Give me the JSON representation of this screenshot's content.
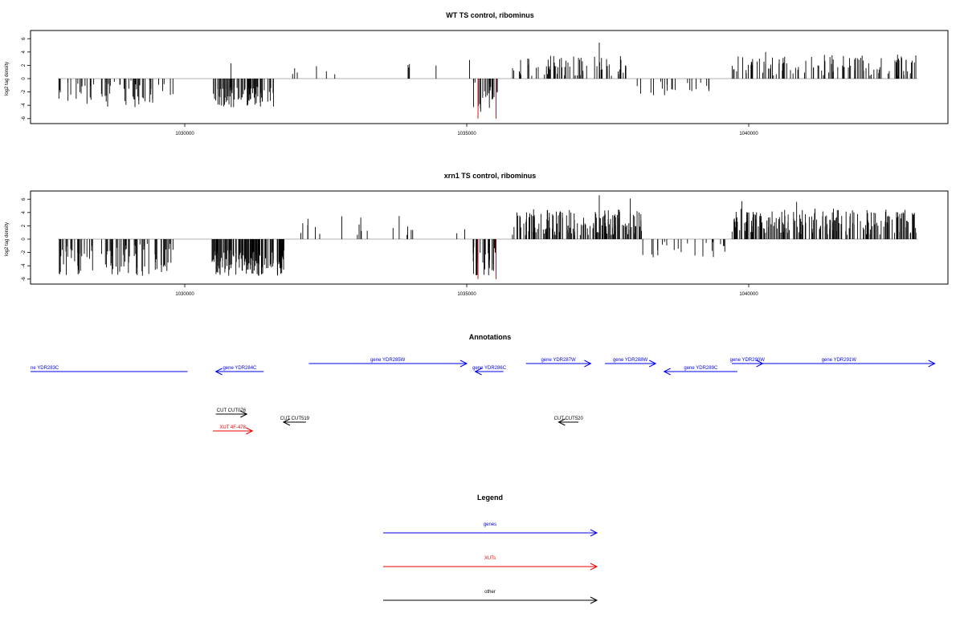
{
  "chart_data": [
    {
      "type": "bar",
      "title": "WT TS control, ribominus",
      "ylabel": "log2 tag density",
      "xlim": [
        1027200,
        1043700
      ],
      "ylim": [
        -6,
        7
      ],
      "xticks": [
        "1030000",
        "1035000",
        "1040000"
      ],
      "yticks": [
        "6",
        "4",
        "2",
        "0",
        "-2",
        "-4",
        "-6"
      ],
      "highlight_color": "#cc0000",
      "negative_clusters": [
        {
          "start": 1027750,
          "end": 1029800,
          "count": 60,
          "min": -4.3,
          "max": -0.3
        },
        {
          "start": 1030480,
          "end": 1031600,
          "count": 80,
          "min": -4.3,
          "max": -1.2
        },
        {
          "start": 1035100,
          "end": 1035550,
          "count": 24,
          "min": -5.0,
          "max": -0.5
        },
        {
          "start": 1038000,
          "end": 1038700,
          "count": 12,
          "min": -2.6,
          "max": -0.4
        },
        {
          "start": 1038900,
          "end": 1039500,
          "count": 8,
          "min": -2.0,
          "max": -0.4
        }
      ],
      "positive_clusters": [
        {
          "start": 1031900,
          "end": 1032800,
          "count": 6,
          "min": 0.5,
          "max": 2.0
        },
        {
          "start": 1033800,
          "end": 1034600,
          "count": 4,
          "min": 0.8,
          "max": 2.6
        },
        {
          "start": 1035800,
          "end": 1037900,
          "count": 70,
          "min": 0.4,
          "max": 3.5
        },
        {
          "start": 1039700,
          "end": 1043000,
          "count": 110,
          "min": 0.4,
          "max": 3.6
        }
      ],
      "extra_bars": [
        {
          "x": 1030820,
          "y": 2.3
        },
        {
          "x": 1035050,
          "y": 2.8
        },
        {
          "x": 1037350,
          "y": 5.4
        },
        {
          "x": 1040300,
          "y": 4.0
        }
      ],
      "highlighted_bars": [
        {
          "x": 1035200,
          "y": -6.0
        },
        {
          "x": 1035520,
          "y": -6.0
        }
      ]
    },
    {
      "type": "bar",
      "title": "xrn1 TS control, ribominus",
      "ylabel": "log2 tag density",
      "xlim": [
        1027200,
        1043700
      ],
      "ylim": [
        -6,
        7
      ],
      "xticks": [
        "1030000",
        "1035000",
        "1040000"
      ],
      "yticks": [
        "6",
        "4",
        "2",
        "0",
        "-2",
        "-4",
        "-6"
      ],
      "highlight_color": "#cc0000",
      "negative_clusters": [
        {
          "start": 1027750,
          "end": 1029800,
          "count": 90,
          "min": -5.5,
          "max": -0.5
        },
        {
          "start": 1030480,
          "end": 1031800,
          "count": 140,
          "min": -5.5,
          "max": -1.5
        },
        {
          "start": 1035100,
          "end": 1035550,
          "count": 30,
          "min": -5.5,
          "max": -1.0
        },
        {
          "start": 1038100,
          "end": 1039600,
          "count": 22,
          "min": -2.8,
          "max": -0.4
        }
      ],
      "positive_clusters": [
        {
          "start": 1031800,
          "end": 1035000,
          "count": 20,
          "min": 0.3,
          "max": 3.6
        },
        {
          "start": 1035800,
          "end": 1038100,
          "count": 160,
          "min": 0.6,
          "max": 4.5
        },
        {
          "start": 1039700,
          "end": 1043000,
          "count": 200,
          "min": 0.6,
          "max": 4.6
        }
      ],
      "extra_bars": [
        {
          "x": 1037350,
          "y": 6.6
        },
        {
          "x": 1037900,
          "y": 6.1
        },
        {
          "x": 1039880,
          "y": 5.7
        },
        {
          "x": 1040850,
          "y": 5.6
        }
      ],
      "highlighted_bars": [
        {
          "x": 1035200,
          "y": -6.0
        },
        {
          "x": 1035520,
          "y": -6.0
        }
      ]
    },
    {
      "type": "annotation_track",
      "title": "Annotations",
      "xlim": [
        1027200,
        1043700
      ],
      "features": [
        {
          "label": "ne YDR283C",
          "start": 1027200,
          "end": 1030050,
          "strand": "none",
          "row": 0,
          "kind": "gene"
        },
        {
          "label": "gene YDR284C",
          "start": 1030550,
          "end": 1031400,
          "strand": "-",
          "row": 0,
          "kind": "gene"
        },
        {
          "label": "gene YDR285W",
          "start": 1032200,
          "end": 1035000,
          "strand": "+",
          "row": 1,
          "kind": "gene"
        },
        {
          "label": "gene YDR286C",
          "start": 1035150,
          "end": 1035650,
          "strand": "-",
          "row": 0,
          "kind": "gene"
        },
        {
          "label": "gene YDR287W",
          "start": 1036050,
          "end": 1037200,
          "strand": "+",
          "row": 1,
          "kind": "gene"
        },
        {
          "label": "gene YDR288W",
          "start": 1037450,
          "end": 1038350,
          "strand": "+",
          "row": 1,
          "kind": "gene"
        },
        {
          "label": "gene YDR289C",
          "start": 1038500,
          "end": 1039800,
          "strand": "-",
          "row": 0,
          "kind": "gene"
        },
        {
          "label": "gene YDR290W",
          "start": 1039700,
          "end": 1040250,
          "strand": "+",
          "row": 1,
          "kind": "gene"
        },
        {
          "label": "gene YDR291W",
          "start": 1039900,
          "end": 1043300,
          "strand": "+",
          "row": 1,
          "kind": "gene"
        },
        {
          "label": "CUT CUT076",
          "start": 1030550,
          "end": 1031100,
          "strand": "+",
          "row": 2,
          "kind": "other"
        },
        {
          "label": "CUT CUT519",
          "start": 1031750,
          "end": 1032150,
          "strand": "-",
          "row": 3,
          "kind": "other"
        },
        {
          "label": "CUT CUT520",
          "start": 1036630,
          "end": 1036980,
          "strand": "-",
          "row": 3,
          "kind": "other"
        },
        {
          "label": "XUT 4F-478",
          "start": 1030500,
          "end": 1031200,
          "strand": "+",
          "row": 4,
          "kind": "xut"
        }
      ]
    }
  ],
  "colors": {
    "gene": "#0000ee",
    "xut": "#ee0000",
    "other": "#000000"
  },
  "legend": {
    "title": "Legend",
    "items": [
      {
        "label": "genes",
        "kind": "gene"
      },
      {
        "label": "XUTs",
        "kind": "xut"
      },
      {
        "label": "other",
        "kind": "other"
      }
    ]
  }
}
